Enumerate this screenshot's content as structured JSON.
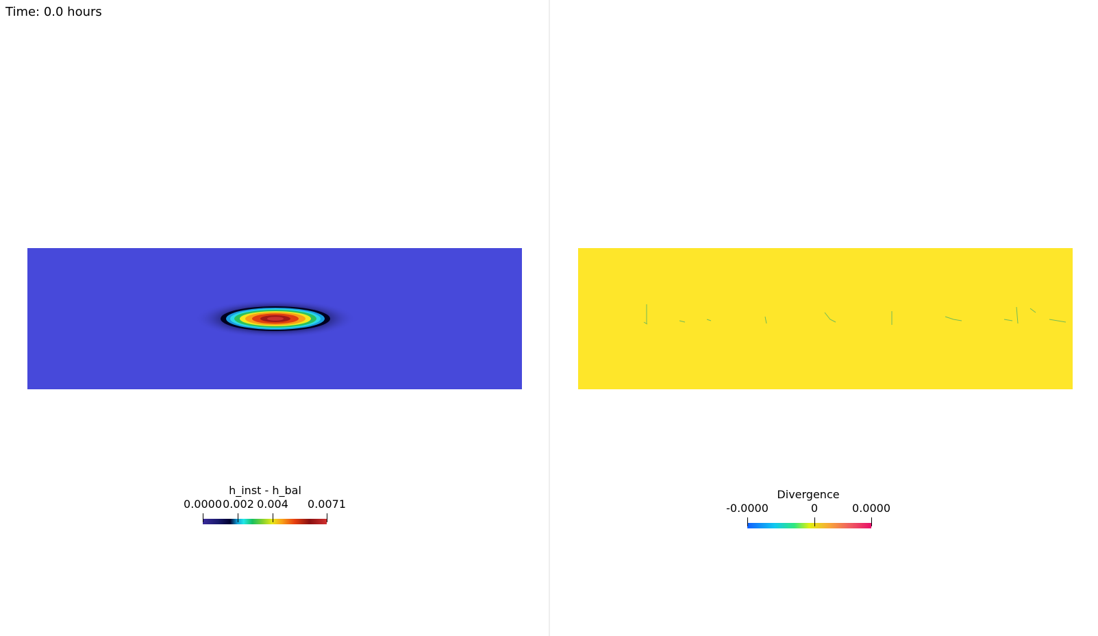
{
  "time_label": "Time: 0.0 hours",
  "left_view": {
    "field_color": "#4749da",
    "colorbar": {
      "title": "h_inst - h_bal",
      "ticks": [
        "0.0000",
        "0.002",
        "0.004",
        "0.0071"
      ]
    }
  },
  "right_view": {
    "field_color": "#fee62a",
    "colorbar": {
      "title": "Divergence",
      "ticks": [
        "-0.0000",
        "0",
        "0.0000"
      ]
    }
  }
}
